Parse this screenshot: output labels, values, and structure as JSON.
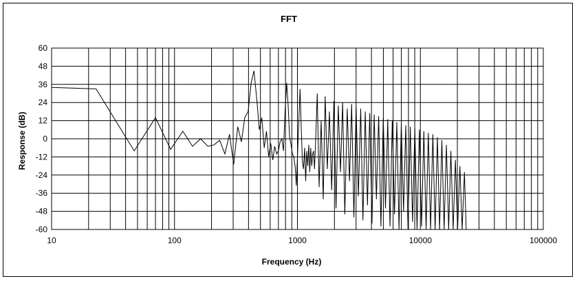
{
  "chart_data": {
    "type": "line",
    "title": "FFT",
    "xlabel": "Frequency (Hz)",
    "ylabel": "Response (dB)",
    "x_scale": "log",
    "xlim": [
      10,
      100000
    ],
    "ylim": [
      -60,
      60
    ],
    "x_tick_labels": [
      "10",
      "100",
      "1000",
      "10000",
      "100000"
    ],
    "y_tick_labels": [
      "60",
      "48",
      "36",
      "24",
      "12",
      "0",
      "-12",
      "-24",
      "-36",
      "-48",
      "-60"
    ],
    "grid": true,
    "legend": "none",
    "series": [
      {
        "color": "#000000",
        "x": [
          10,
          23,
          47,
          70,
          93,
          117,
          140,
          163,
          187,
          210,
          233,
          257,
          280,
          303,
          327,
          350,
          373,
          397,
          420,
          443,
          467,
          490,
          513,
          537,
          560,
          583,
          607,
          630,
          653,
          677,
          700,
          723,
          747,
          770,
          793,
          817,
          840,
          863,
          887,
          910,
          933,
          957,
          980,
          1003,
          1027,
          1050,
          1073,
          1097,
          1120,
          1143,
          1167,
          1190,
          1213,
          1237,
          1260,
          1283,
          1307,
          1330,
          1353,
          1377,
          1400,
          1450,
          1500,
          1560,
          1620,
          1680,
          1750,
          1820,
          1900,
          1980,
          2060,
          2150,
          2240,
          2330,
          2430,
          2540,
          2650,
          2760,
          2880,
          3000,
          3130,
          3270,
          3410,
          3560,
          3710,
          3870,
          4040,
          4210,
          4390,
          4580,
          4780,
          4990,
          5200,
          5430,
          5660,
          5910,
          6160,
          6430,
          6700,
          6990,
          7300,
          7610,
          7940,
          8280,
          8640,
          9010,
          9400,
          9810,
          10230,
          10670,
          11130,
          11610,
          12110,
          12640,
          13180,
          13750,
          14340,
          14960,
          15610,
          16280,
          16980,
          17710,
          18480,
          19270,
          20100,
          20970,
          21870,
          22810,
          23600
        ],
        "y": [
          34,
          33,
          -8,
          14,
          -7,
          5,
          -5,
          0,
          -5,
          -4,
          -1,
          -10,
          3,
          -17,
          8,
          -2,
          14,
          18,
          37,
          45,
          26,
          6,
          14,
          -6,
          5,
          -12,
          -3,
          -14,
          -5,
          -10,
          -8,
          -2,
          0,
          -8,
          18,
          37,
          22,
          1,
          -4,
          -10,
          -12,
          -18,
          -31,
          -10,
          12,
          33,
          8,
          -15,
          -20,
          -6,
          -28,
          -8,
          -18,
          -4,
          -22,
          -6,
          -18,
          -10,
          -8,
          -20,
          -6,
          30,
          -32,
          12,
          -40,
          28,
          -20,
          18,
          -34,
          25,
          -46,
          22,
          -22,
          24,
          -50,
          20,
          -28,
          23,
          -52,
          21,
          -38,
          20,
          -54,
          18,
          -44,
          17,
          -56,
          16,
          -40,
          15,
          -58,
          14,
          -46,
          13,
          -58,
          12,
          -50,
          11,
          -60,
          10,
          -48,
          9,
          -60,
          8,
          -55,
          7,
          -60,
          6,
          -58,
          5,
          -60,
          4,
          -60,
          3,
          -60,
          1,
          -60,
          -1,
          -60,
          -4,
          -60,
          -8,
          -60,
          -14,
          -60,
          -18,
          -60,
          -22,
          -60
        ]
      }
    ]
  }
}
